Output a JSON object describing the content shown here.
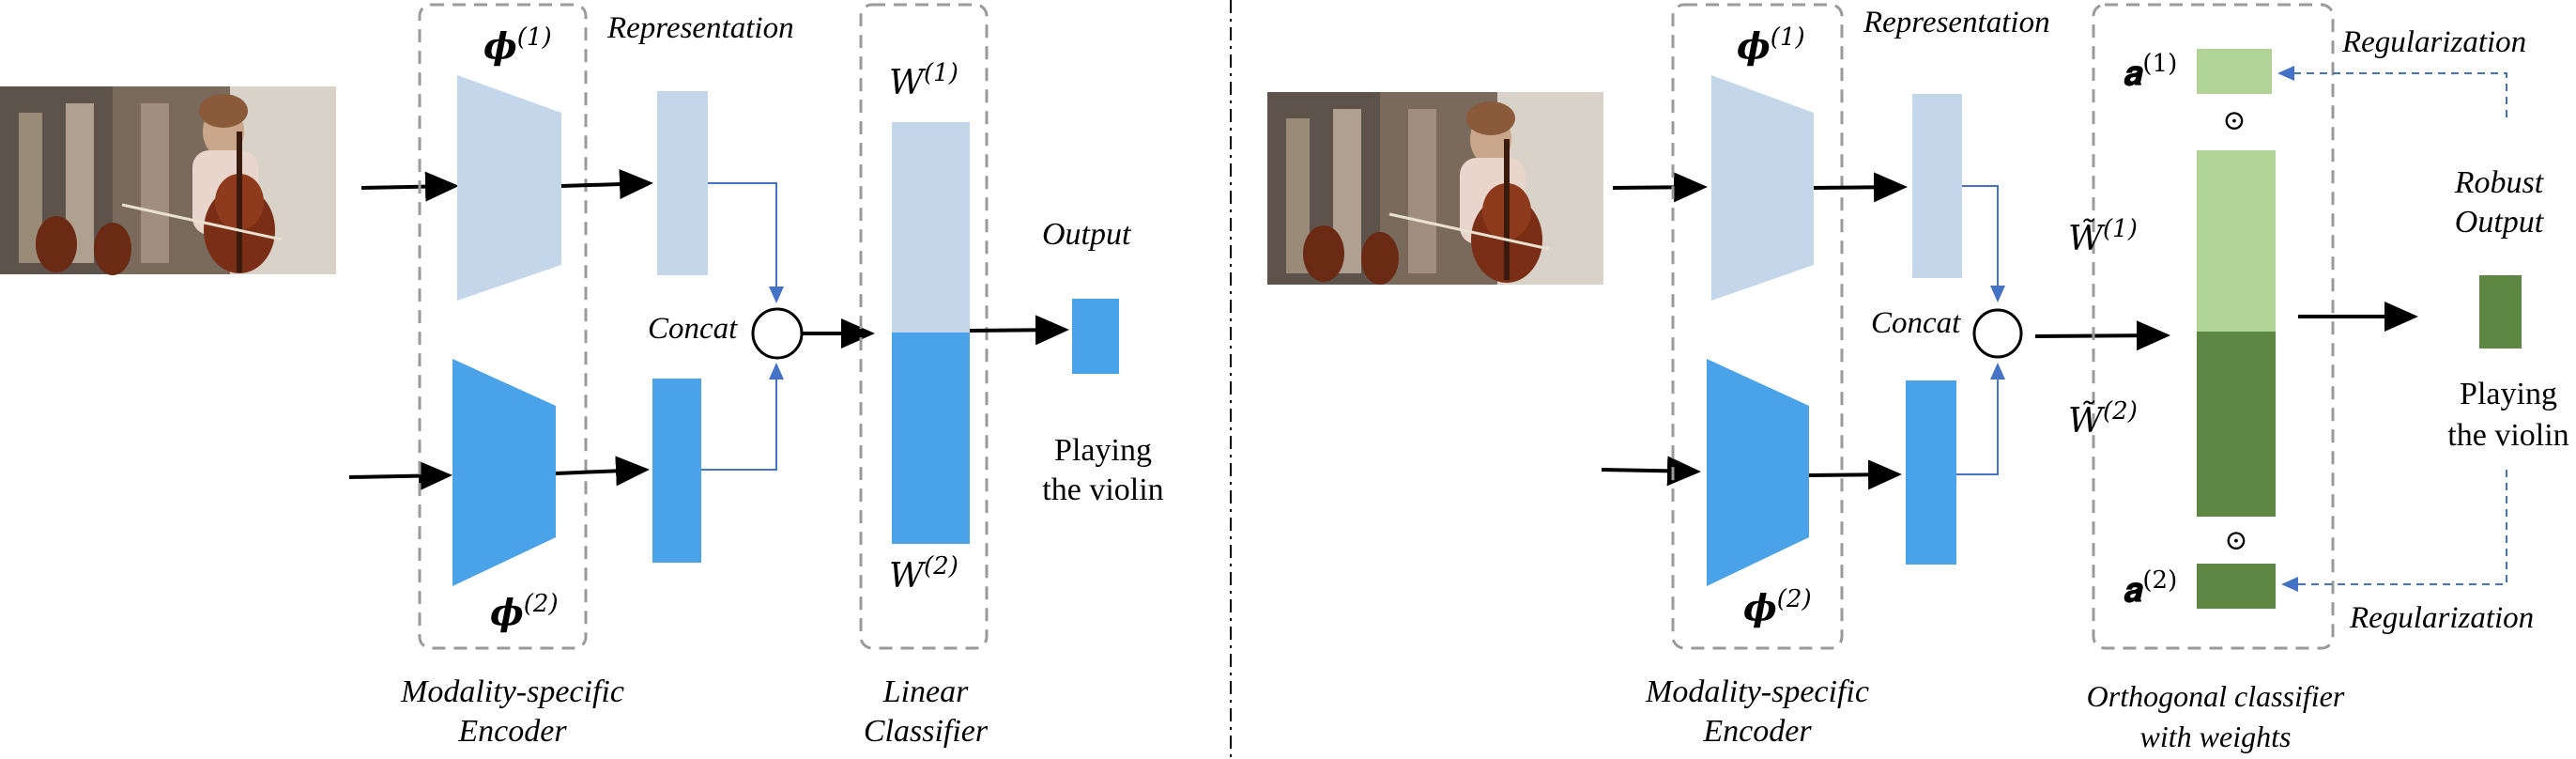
{
  "colors": {
    "light_blue": "#c4d6ea",
    "blue": "#4aa3e8",
    "light_green": "#b0d396",
    "dark_green": "#5e8743",
    "dashed_gray": "#9a9a9a",
    "connector_blue": "#4472c4",
    "arrow_black": "#000000"
  },
  "left_panel": {
    "encoder_top_label": "𝝓",
    "encoder_top_sup": "(1)",
    "encoder_bottom_label": "𝝓",
    "encoder_bottom_sup": "(2)",
    "representation_label": "Representation",
    "concat_label": "Concat",
    "weight_top_label": "W",
    "weight_top_sup": "(1)",
    "weight_bottom_label": "W",
    "weight_bottom_sup": "(2)",
    "output_label": "Output",
    "result_line1": "Playing",
    "result_line2": "the violin",
    "encoder_caption_line1": "Modality-specific",
    "encoder_caption_line2": "Encoder",
    "classifier_caption_line1": "Linear",
    "classifier_caption_line2": "Classifier"
  },
  "right_panel": {
    "encoder_top_label": "𝝓",
    "encoder_top_sup": "(1)",
    "encoder_bottom_label": "𝝓",
    "encoder_bottom_sup": "(2)",
    "representation_label": "Representation",
    "concat_label": "Concat",
    "alpha_top_label": "𝒂",
    "alpha_top_sup": "(1)",
    "alpha_bottom_label": "𝒂",
    "alpha_bottom_sup": "(2)",
    "odot_symbol": "⊙",
    "weight_top_label": "W̃",
    "weight_top_sup": "(1)",
    "weight_bottom_label": "W̃",
    "weight_bottom_sup": "(2)",
    "regularization_top": "Regularization",
    "regularization_bottom": "Regularization",
    "robust_output_line1": "Robust",
    "robust_output_line2": "Output",
    "result_line1": "Playing",
    "result_line2": "the violin",
    "encoder_caption_line1": "Modality-specific",
    "encoder_caption_line2": "Encoder",
    "classifier_caption_line1": "Orthogonal classifier",
    "classifier_caption_line2": "with weights"
  }
}
